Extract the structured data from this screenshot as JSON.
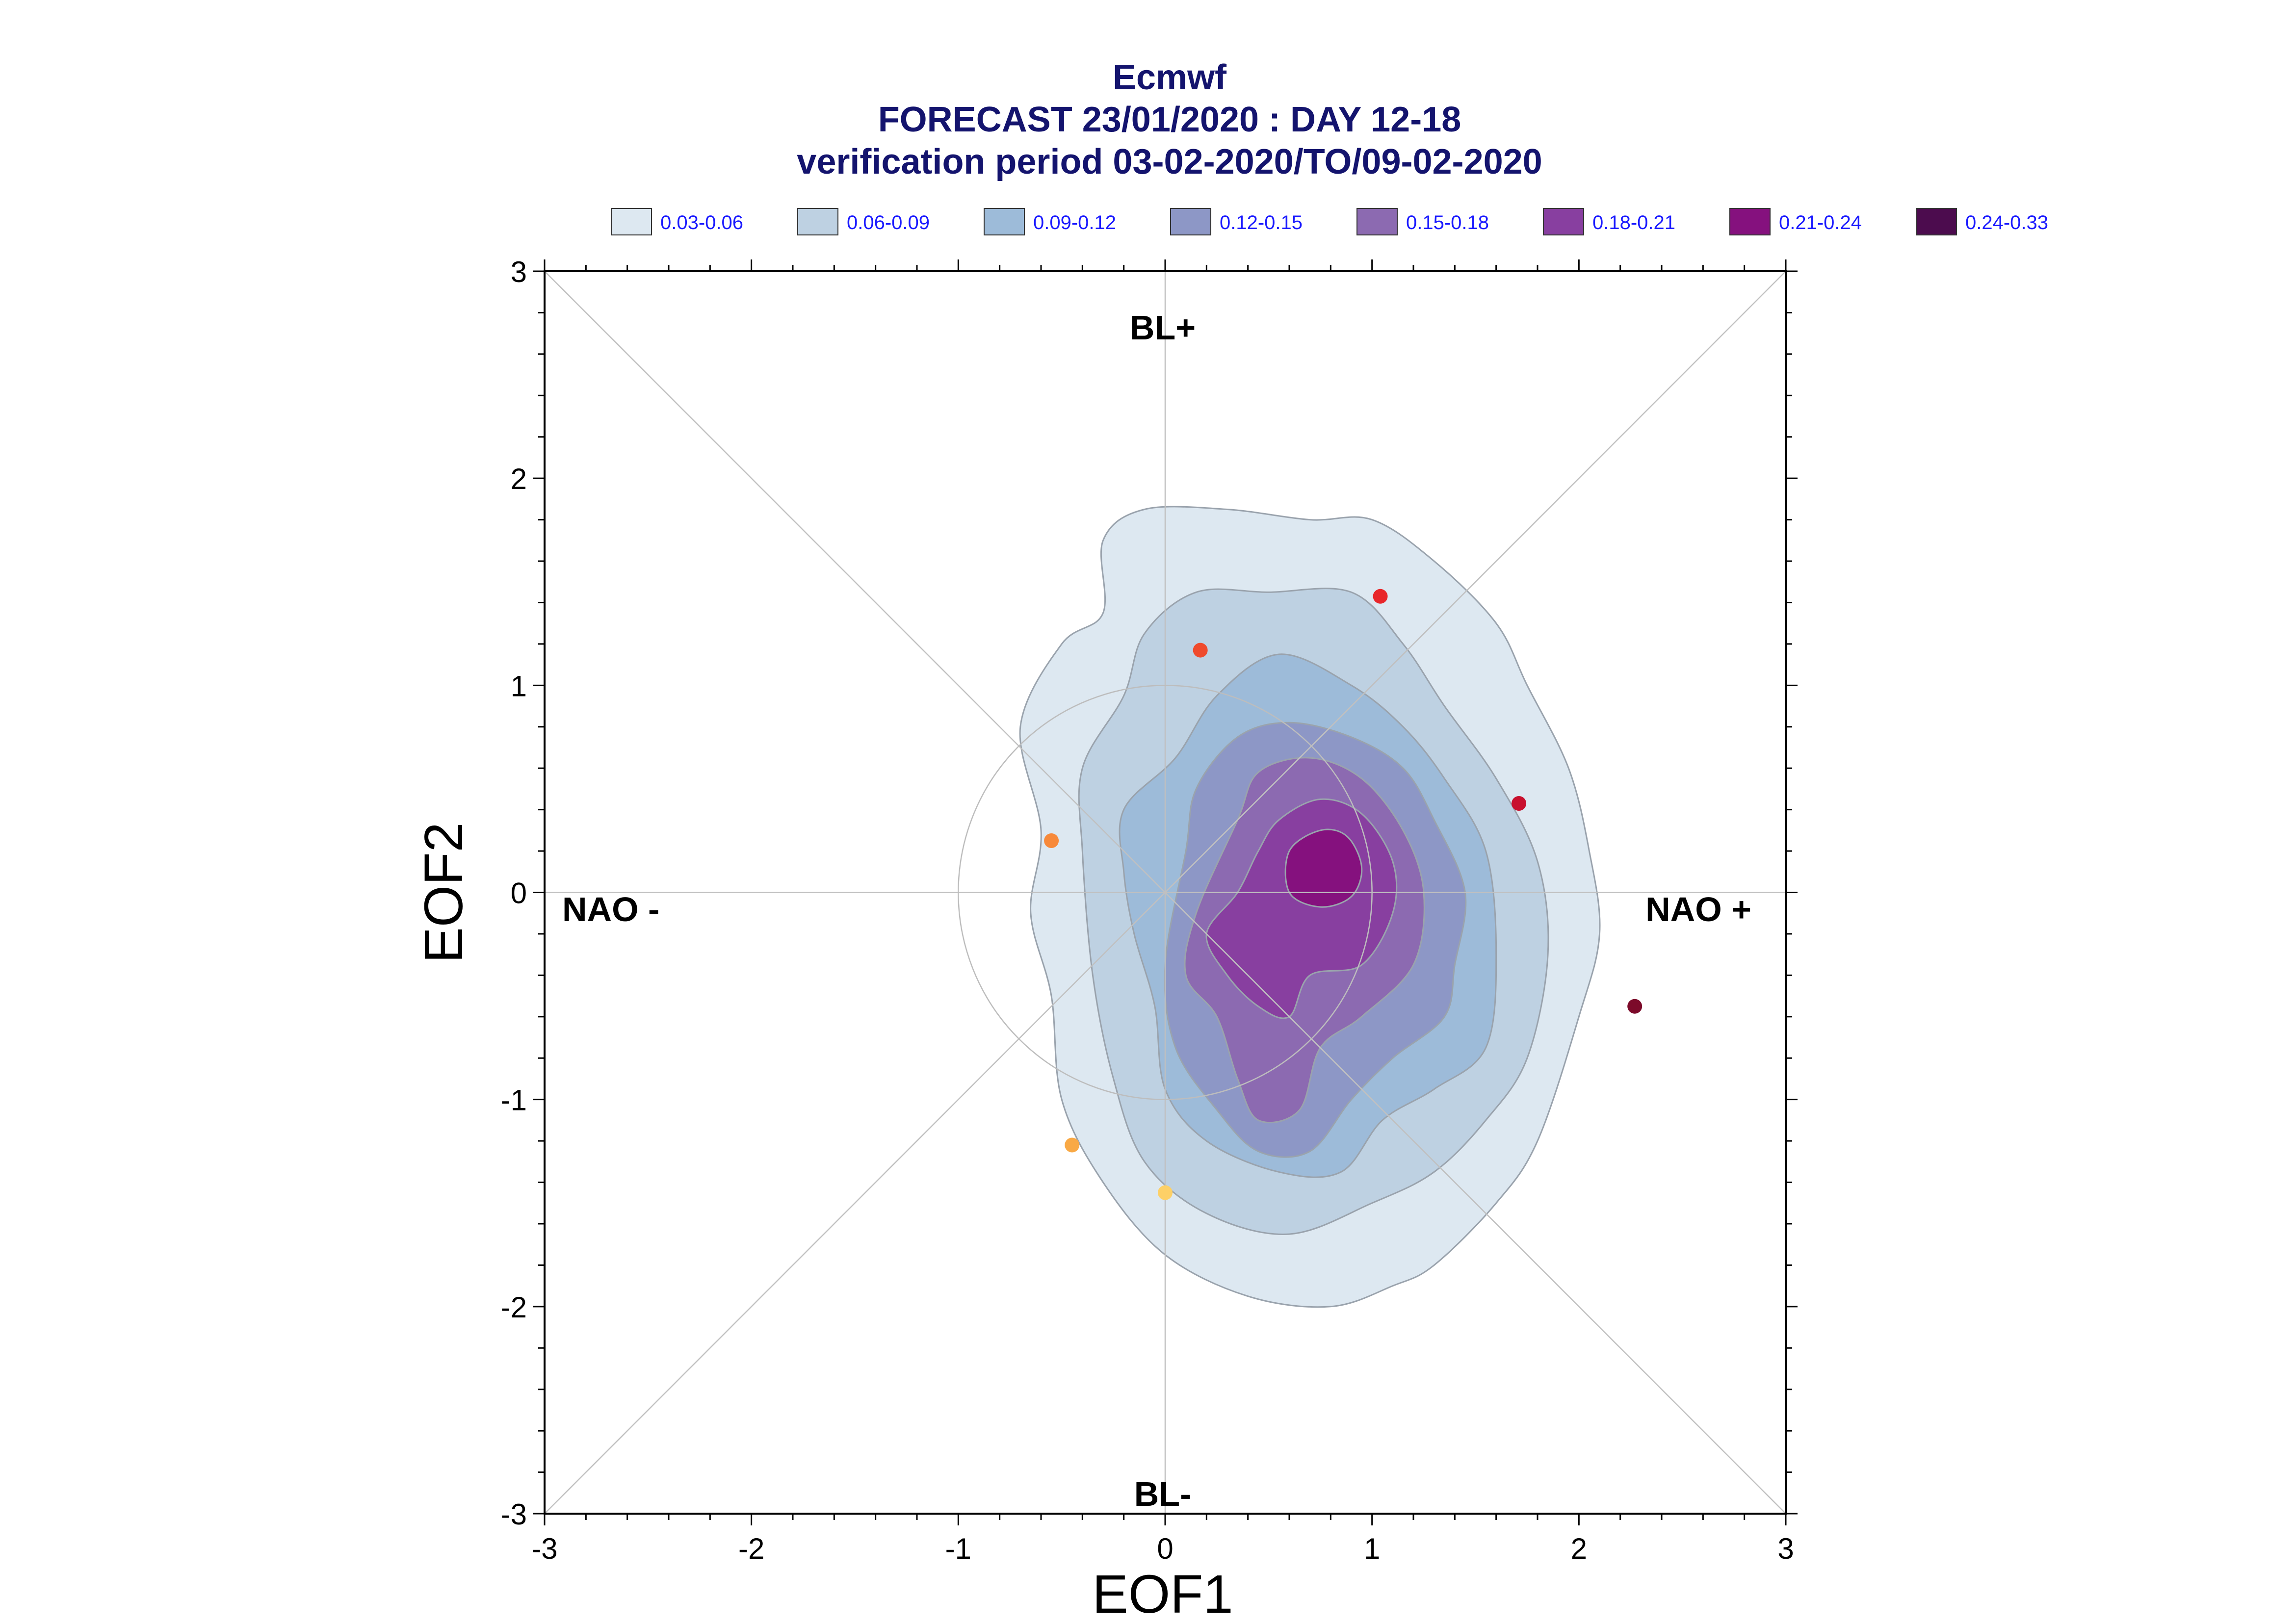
{
  "chart_data": {
    "type": "contour-scatter",
    "title_lines": [
      "Ecmwf",
      "FORECAST 23/01/2020 : DAY 12-18",
      "verification period 03-02-2020/TO/09-02-2020"
    ],
    "xlabel": "EOF1",
    "ylabel": "EOF2",
    "xlim": [
      -3,
      3
    ],
    "ylim": [
      -3,
      3
    ],
    "xticks": [
      "-3",
      "-2",
      "-1",
      "0",
      "1",
      "2",
      "3"
    ],
    "yticks": [
      "-3",
      "-2",
      "-1",
      "0",
      "1",
      "2",
      "3"
    ],
    "region_labels": {
      "top": "BL+",
      "bottom": "BL-",
      "left": "NAO -",
      "right": "NAO +"
    },
    "reference_circle_radius": 1,
    "legend": [
      {
        "label": "0.03-0.06",
        "color": "#dde8f1"
      },
      {
        "label": "0.06-0.09",
        "color": "#bed1e2"
      },
      {
        "label": "0.09-0.12",
        "color": "#9dbbd9"
      },
      {
        "label": "0.12-0.15",
        "color": "#8d97c6"
      },
      {
        "label": "0.15-0.18",
        "color": "#8c6ab1"
      },
      {
        "label": "0.18-0.21",
        "color": "#883fa0"
      },
      {
        "label": "0.21-0.24",
        "color": "#85117e"
      },
      {
        "label": "0.24-0.33",
        "color": "#4c0c4e"
      }
    ],
    "density_levels": [
      {
        "range": "0.03-0.06",
        "outline": [
          [
            -0.6,
            0.3
          ],
          [
            -0.7,
            0.8
          ],
          [
            -0.5,
            1.2
          ],
          [
            -0.3,
            1.35
          ],
          [
            -0.3,
            1.7
          ],
          [
            -0.1,
            1.85
          ],
          [
            0.3,
            1.85
          ],
          [
            0.7,
            1.8
          ],
          [
            1.0,
            1.8
          ],
          [
            1.3,
            1.6
          ],
          [
            1.6,
            1.3
          ],
          [
            1.75,
            1.0
          ],
          [
            1.95,
            0.6
          ],
          [
            2.05,
            0.2
          ],
          [
            2.1,
            -0.2
          ],
          [
            2.0,
            -0.6
          ],
          [
            1.8,
            -1.2
          ],
          [
            1.6,
            -1.5
          ],
          [
            1.3,
            -1.8
          ],
          [
            1.1,
            -1.9
          ],
          [
            0.8,
            -2.0
          ],
          [
            0.4,
            -1.95
          ],
          [
            0.0,
            -1.75
          ],
          [
            -0.3,
            -1.4
          ],
          [
            -0.5,
            -1.0
          ],
          [
            -0.55,
            -0.5
          ],
          [
            -0.65,
            -0.1
          ]
        ]
      },
      {
        "range": "0.06-0.09",
        "outline": [
          [
            -0.4,
            0.2
          ],
          [
            -0.4,
            0.6
          ],
          [
            -0.2,
            0.95
          ],
          [
            -0.1,
            1.25
          ],
          [
            0.15,
            1.45
          ],
          [
            0.5,
            1.45
          ],
          [
            0.9,
            1.45
          ],
          [
            1.15,
            1.2
          ],
          [
            1.35,
            0.9
          ],
          [
            1.6,
            0.55
          ],
          [
            1.8,
            0.15
          ],
          [
            1.85,
            -0.3
          ],
          [
            1.75,
            -0.8
          ],
          [
            1.55,
            -1.1
          ],
          [
            1.3,
            -1.35
          ],
          [
            1.0,
            -1.5
          ],
          [
            0.6,
            -1.65
          ],
          [
            0.2,
            -1.55
          ],
          [
            -0.1,
            -1.3
          ],
          [
            -0.25,
            -0.9
          ],
          [
            -0.35,
            -0.4
          ]
        ]
      },
      {
        "range": "0.09-0.12",
        "outline": [
          [
            -0.2,
            0.1
          ],
          [
            -0.2,
            0.4
          ],
          [
            0.05,
            0.65
          ],
          [
            0.25,
            0.95
          ],
          [
            0.55,
            1.15
          ],
          [
            0.9,
            1.0
          ],
          [
            1.15,
            0.8
          ],
          [
            1.35,
            0.55
          ],
          [
            1.55,
            0.2
          ],
          [
            1.6,
            -0.3
          ],
          [
            1.55,
            -0.75
          ],
          [
            1.3,
            -0.95
          ],
          [
            1.05,
            -1.1
          ],
          [
            0.85,
            -1.35
          ],
          [
            0.55,
            -1.35
          ],
          [
            0.2,
            -1.2
          ],
          [
            0.0,
            -0.95
          ],
          [
            -0.05,
            -0.55
          ],
          [
            -0.15,
            -0.2
          ]
        ]
      },
      {
        "range": "0.12-0.15",
        "outline": [
          [
            0.1,
            0.2
          ],
          [
            0.15,
            0.5
          ],
          [
            0.35,
            0.75
          ],
          [
            0.6,
            0.82
          ],
          [
            0.9,
            0.75
          ],
          [
            1.15,
            0.6
          ],
          [
            1.3,
            0.35
          ],
          [
            1.45,
            0.0
          ],
          [
            1.4,
            -0.35
          ],
          [
            1.35,
            -0.6
          ],
          [
            1.1,
            -0.8
          ],
          [
            0.9,
            -1.0
          ],
          [
            0.7,
            -1.25
          ],
          [
            0.45,
            -1.25
          ],
          [
            0.25,
            -1.05
          ],
          [
            0.05,
            -0.75
          ],
          [
            0.0,
            -0.35
          ]
        ]
      },
      {
        "range": "0.15-0.18",
        "outline": [
          [
            0.35,
            0.35
          ],
          [
            0.45,
            0.58
          ],
          [
            0.7,
            0.65
          ],
          [
            0.95,
            0.55
          ],
          [
            1.15,
            0.3
          ],
          [
            1.25,
            0.0
          ],
          [
            1.2,
            -0.35
          ],
          [
            0.95,
            -0.6
          ],
          [
            0.75,
            -0.75
          ],
          [
            0.65,
            -1.05
          ],
          [
            0.45,
            -1.1
          ],
          [
            0.35,
            -0.9
          ],
          [
            0.25,
            -0.6
          ],
          [
            0.1,
            -0.4
          ],
          [
            0.15,
            -0.1
          ]
        ]
      },
      {
        "range": "0.18-0.21",
        "outline": [
          [
            0.55,
            0.35
          ],
          [
            0.75,
            0.45
          ],
          [
            0.95,
            0.38
          ],
          [
            1.1,
            0.15
          ],
          [
            1.1,
            -0.1
          ],
          [
            0.95,
            -0.35
          ],
          [
            0.7,
            -0.4
          ],
          [
            0.6,
            -0.6
          ],
          [
            0.45,
            -0.55
          ],
          [
            0.3,
            -0.4
          ],
          [
            0.2,
            -0.2
          ],
          [
            0.35,
            0.0
          ],
          [
            0.45,
            0.2
          ]
        ]
      },
      {
        "range": "0.21-0.24",
        "outline": [
          [
            0.6,
            0.2
          ],
          [
            0.75,
            0.3
          ],
          [
            0.88,
            0.27
          ],
          [
            0.95,
            0.12
          ],
          [
            0.9,
            -0.02
          ],
          [
            0.75,
            -0.07
          ],
          [
            0.6,
            0.0
          ]
        ]
      }
    ],
    "points": [
      {
        "x": 1.04,
        "y": 1.43,
        "color": "#e8262a"
      },
      {
        "x": 0.17,
        "y": 1.17,
        "color": "#f04a2c"
      },
      {
        "x": 1.71,
        "y": 0.43,
        "color": "#c8102e"
      },
      {
        "x": -0.55,
        "y": 0.25,
        "color": "#f7893a"
      },
      {
        "x": 2.27,
        "y": -0.55,
        "color": "#7c0a2a"
      },
      {
        "x": -0.45,
        "y": -1.22,
        "color": "#f9a945"
      },
      {
        "x": 0.0,
        "y": -1.45,
        "color": "#fdd067"
      }
    ],
    "colors": {
      "title": "#14146e",
      "legend_text": "#1a1aff",
      "guide_lines": "#c0c0c0",
      "reference_circle": "#bdbdbd",
      "contour_edge": "#9aa3ad"
    }
  }
}
